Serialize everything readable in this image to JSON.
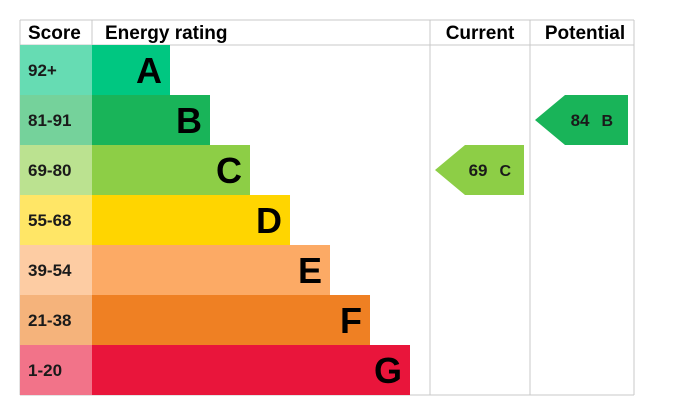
{
  "chart_data": {
    "type": "bar",
    "headers": {
      "score": "Score",
      "rating": "Energy rating",
      "current": "Current",
      "potential": "Potential"
    },
    "bands": [
      {
        "letter": "A",
        "range": "92+",
        "color": "#00c781",
        "score_color": "#66dcb3"
      },
      {
        "letter": "B",
        "range": "81-91",
        "color": "#19b459",
        "score_color": "#75d29b"
      },
      {
        "letter": "C",
        "range": "69-80",
        "color": "#8dce46",
        "score_color": "#bbe290"
      },
      {
        "letter": "D",
        "range": "55-68",
        "color": "#ffd500",
        "score_color": "#ffe666"
      },
      {
        "letter": "E",
        "range": "39-54",
        "color": "#fcaa65",
        "score_color": "#fdccA3"
      },
      {
        "letter": "F",
        "range": "21-38",
        "color": "#ef8023",
        "score_color": "#f5b37b"
      },
      {
        "letter": "G",
        "range": "1-20",
        "color": "#e9153b",
        "score_color": "#f27389"
      }
    ],
    "current": {
      "value": "69",
      "letter": "C",
      "color": "#8dce46"
    },
    "potential": {
      "value": "84",
      "letter": "B",
      "color": "#19b459"
    }
  }
}
